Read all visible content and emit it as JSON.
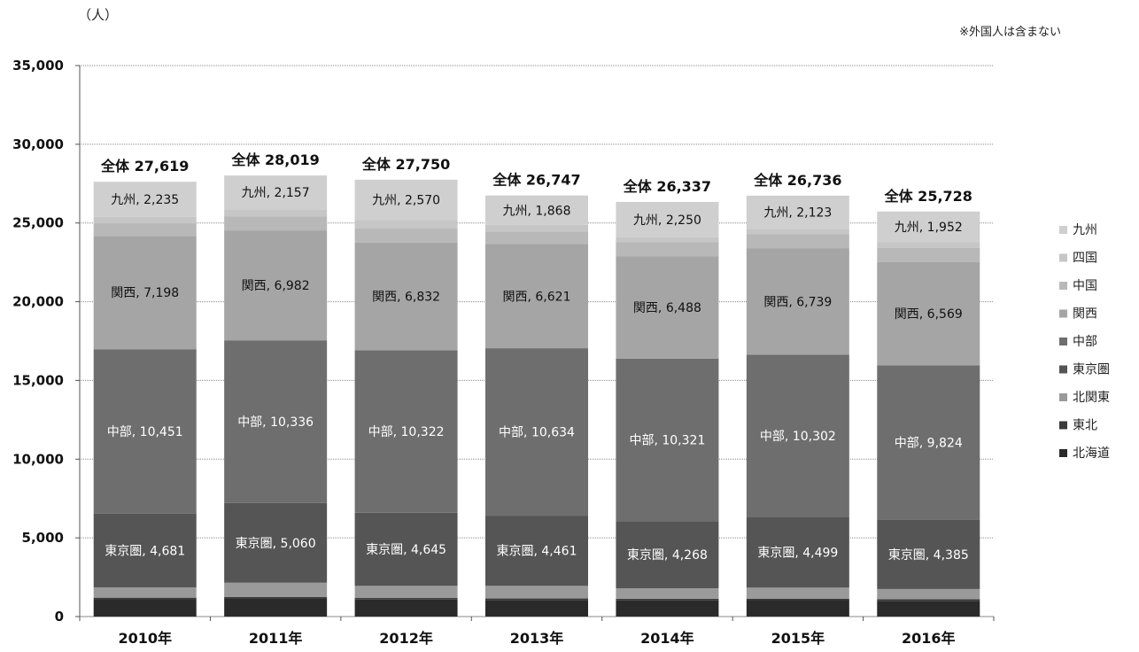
{
  "chart_data": {
    "type": "bar",
    "stacked": true,
    "unit_label": "（人）",
    "note": "※外国人は含まない",
    "categories": [
      "2010年",
      "2011年",
      "2012年",
      "2013年",
      "2014年",
      "2015年",
      "2016年"
    ],
    "ylim": [
      0,
      35000
    ],
    "yticks": [
      0,
      5000,
      10000,
      15000,
      20000,
      25000,
      30000,
      35000
    ],
    "ytick_labels": [
      "0",
      "5,000",
      "10,000",
      "15,000",
      "20,000",
      "25,000",
      "30,000",
      "35,000"
    ],
    "grid": true,
    "legend_position": "right",
    "totals": [
      27619,
      28019,
      27750,
      26747,
      26337,
      26736,
      25728
    ],
    "total_labels": [
      "全体 27,619",
      "全体 28,019",
      "全体 27,750",
      "全体 26,747",
      "全体 26,337",
      "全体 26,736",
      "全体 25,728"
    ],
    "series": [
      {
        "name": "北海道",
        "values": [
          1100,
          1150,
          1080,
          1050,
          1030,
          1040,
          1000
        ],
        "labels": [
          "",
          "",
          "",
          "",
          "",
          "",
          ""
        ]
      },
      {
        "name": "東北",
        "values": [
          100,
          100,
          100,
          100,
          100,
          100,
          100
        ],
        "labels": [
          "",
          "",
          "",
          "",
          "",
          "",
          ""
        ]
      },
      {
        "name": "北関東",
        "values": [
          650,
          900,
          770,
          800,
          670,
          700,
          650
        ],
        "labels": [
          "",
          "",
          "",
          "",
          "",
          "",
          ""
        ]
      },
      {
        "name": "東京圏",
        "values": [
          4681,
          5060,
          4645,
          4461,
          4268,
          4499,
          4385
        ],
        "labels": [
          "東京圏, 4,681",
          "東京圏, 5,060",
          "東京圏, 4,645",
          "東京圏, 4,461",
          "東京圏, 4,268",
          "東京圏, 4,499",
          "東京圏, 4,385"
        ]
      },
      {
        "name": "中部",
        "values": [
          10451,
          10336,
          10322,
          10634,
          10321,
          10302,
          9824
        ],
        "labels": [
          "中部, 10,451",
          "中部, 10,336",
          "中部, 10,322",
          "中部, 10,634",
          "中部, 10,321",
          "中部, 10,302",
          "中部, 9,824"
        ]
      },
      {
        "name": "関西",
        "values": [
          7198,
          6982,
          6832,
          6621,
          6488,
          6739,
          6569
        ],
        "labels": [
          "関西, 7,198",
          "関西, 6,982",
          "関西, 6,832",
          "関西, 6,621",
          "関西, 6,488",
          "関西, 6,739",
          "関西, 6,569"
        ]
      },
      {
        "name": "中国",
        "values": [
          800,
          900,
          900,
          800,
          900,
          900,
          900
        ],
        "labels": [
          "",
          "",
          "",
          "",
          "",
          "",
          ""
        ]
      },
      {
        "name": "四国",
        "values": [
          404,
          434,
          531,
          413,
          310,
          333,
          348
        ],
        "labels": [
          "",
          "",
          "",
          "",
          "",
          "",
          ""
        ]
      },
      {
        "name": "九州",
        "values": [
          2235,
          2157,
          2570,
          1868,
          2250,
          2123,
          1952
        ],
        "labels": [
          "九州, 2,235",
          "九州, 2,157",
          "九州, 2,570",
          "九州, 1,868",
          "九州, 2,250",
          "九州, 2,123",
          "九州, 1,952"
        ]
      }
    ],
    "legend_order": [
      "九州",
      "四国",
      "中国",
      "関西",
      "中部",
      "東京圏",
      "北関東",
      "東北",
      "北海道"
    ],
    "colors": {
      "北海道": "#2a2a2a",
      "東北": "#3a3a3a",
      "北関東": "#9a9a9a",
      "東京圏": "#555555",
      "中部": "#6e6e6e",
      "関西": "#a5a5a5",
      "中国": "#b8b8b8",
      "四国": "#c6c6c6",
      "九州": "#cfcfcf"
    }
  }
}
